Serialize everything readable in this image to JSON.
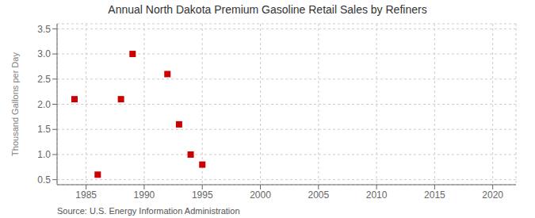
{
  "chart_data": {
    "type": "scatter",
    "title": "Annual North Dakota Premium Gasoline Retail Sales by Refiners",
    "y_label": "Thousand Gallons per Day",
    "annotation": "Source: U.S. Energy Information Administration",
    "x": [
      1984,
      1986,
      1988,
      1989,
      1992,
      1993,
      1994,
      1995
    ],
    "values": [
      2.1,
      0.6,
      2.1,
      3.0,
      2.6,
      1.6,
      1.0,
      0.8
    ],
    "color": "#cc0000",
    "marker": "square",
    "xlim": [
      1982.5,
      2022
    ],
    "ylim": [
      0.4,
      3.6
    ],
    "xticks": [
      1985,
      1990,
      1995,
      2000,
      2005,
      2010,
      2015,
      2020
    ],
    "yticks": [
      0.5,
      {
        "value": 1.0,
        "label": "1.0"
      },
      1.5,
      {
        "value": 2.0,
        "label": "2.0"
      },
      2.5,
      {
        "value": 3.0,
        "label": "3.0"
      },
      3.5
    ],
    "grid": true
  }
}
